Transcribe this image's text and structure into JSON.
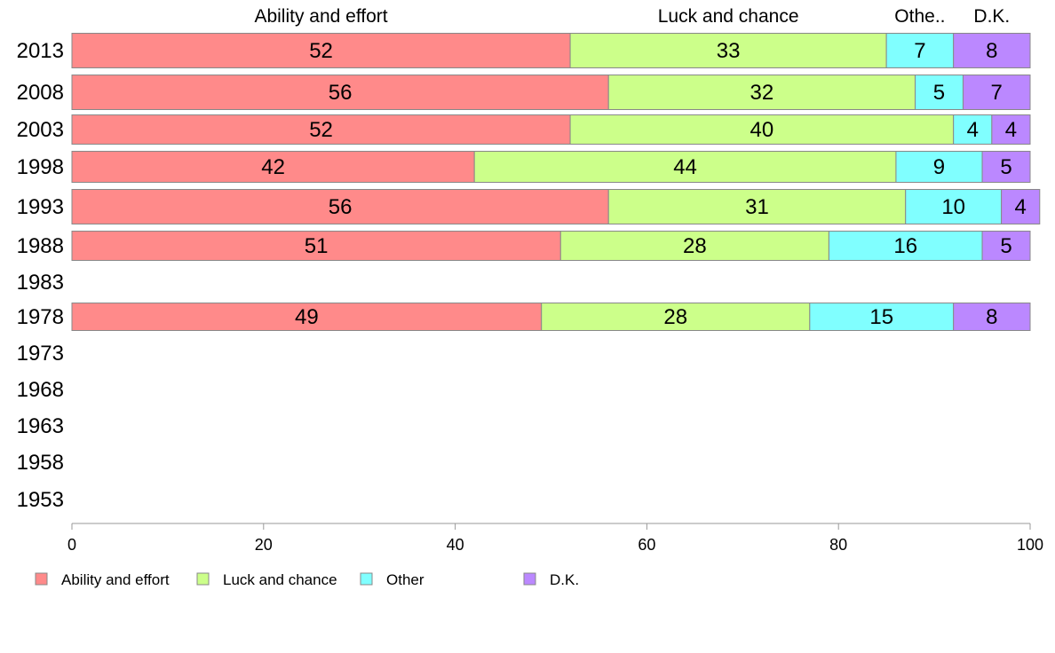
{
  "chart_data": {
    "type": "bar",
    "orientation": "horizontal",
    "stacked": true,
    "categories": [
      "2013",
      "2008",
      "2003",
      "1998",
      "1993",
      "1988",
      "1983",
      "1978",
      "1973",
      "1968",
      "1963",
      "1958",
      "1953"
    ],
    "series": [
      {
        "name": "Ability and effort",
        "header": "Ability and effort",
        "color": "#ff8a8a",
        "values": [
          52,
          56,
          52,
          42,
          56,
          51,
          null,
          49,
          null,
          null,
          null,
          null,
          null
        ]
      },
      {
        "name": "Luck and chance",
        "header": "Luck and chance",
        "color": "#ccff8a",
        "values": [
          33,
          32,
          40,
          44,
          31,
          28,
          null,
          28,
          null,
          null,
          null,
          null,
          null
        ]
      },
      {
        "name": "Other",
        "header": "Othe..",
        "color": "#80ffff",
        "values": [
          7,
          5,
          4,
          9,
          10,
          16,
          null,
          15,
          null,
          null,
          null,
          null,
          null
        ]
      },
      {
        "name": "D.K.",
        "header": "D.K.",
        "color": "#bb88ff",
        "values": [
          8,
          7,
          4,
          5,
          4,
          5,
          null,
          8,
          null,
          null,
          null,
          null,
          null
        ]
      }
    ],
    "xlim": [
      0,
      100
    ],
    "xticks": [
      "0",
      "20",
      "40",
      "60",
      "80",
      "100"
    ],
    "title": "",
    "xlabel": "",
    "ylabel": "",
    "grid": false,
    "legend_position": "bottom-left"
  }
}
